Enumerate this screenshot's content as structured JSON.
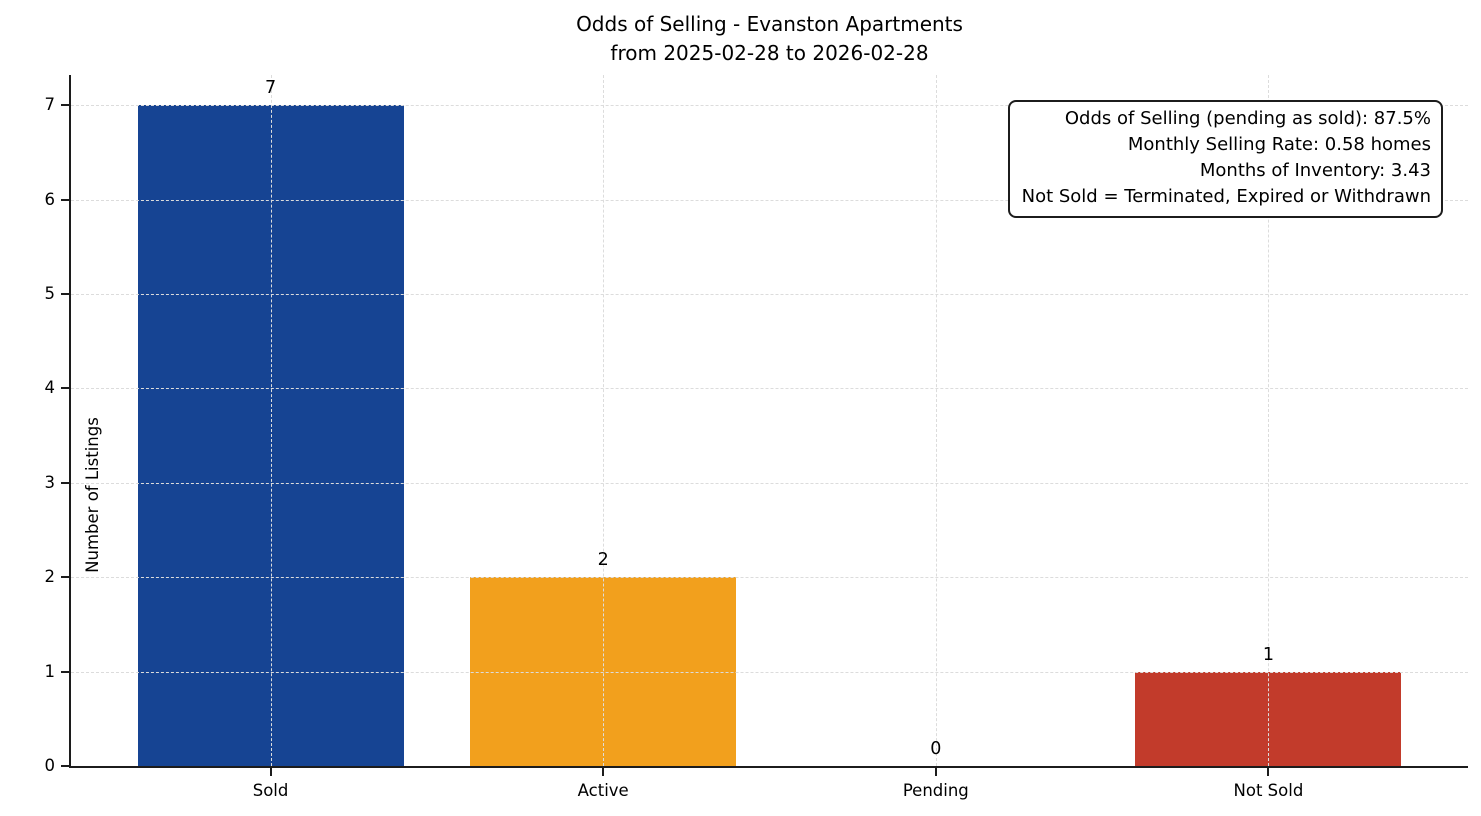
{
  "chart_data": {
    "type": "bar",
    "title": "Odds of Selling - Evanston Apartments",
    "subtitle": "from 2025-02-28 to 2026-02-28",
    "categories": [
      "Sold",
      "Active",
      "Pending",
      "Not Sold"
    ],
    "values": [
      7,
      2,
      0,
      1
    ],
    "bar_colors": [
      "#164493",
      "#F2A01D",
      null,
      "#C23B2B"
    ],
    "xlabel": "",
    "ylabel": "Number of Listings",
    "ylim": [
      0,
      7.32
    ],
    "yticks": [
      0,
      1,
      2,
      3,
      4,
      5,
      6,
      7
    ],
    "xlim": [
      -0.6,
      3.6
    ],
    "bar_width": 0.8,
    "grid": "dashed gridlines on both axes, drawn above bars",
    "legend_position": "none",
    "annotation": {
      "lines": [
        "Odds of Selling (pending as sold): 87.5%",
        "Monthly Selling Rate: 0.58 homes",
        "Months of Inventory: 3.43",
        "Not Sold = Terminated, Expired or Withdrawn"
      ]
    },
    "style": {
      "background": "#ffffff",
      "grid_color": "#dcdcdc",
      "spine_color": "#1c1c1c",
      "text_color": "#000000"
    }
  }
}
